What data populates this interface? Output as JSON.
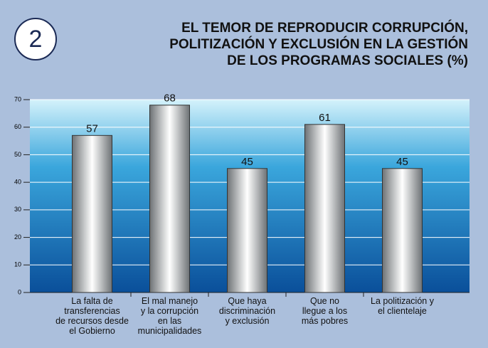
{
  "chart_data": {
    "type": "bar",
    "badge": "2",
    "title": "EL TEMOR DE REPRODUCIR CORRUPCIÓN,\nPOLITIZACIÓN Y EXCLUSIÓN EN LA GESTIÓN\nDE LOS PROGRAMAS SOCIALES (%)",
    "categories": [
      "La falta de\ntransferencias\nde recursos desde\nel Gobierno",
      "El mal manejo\ny la corrupción\nen las\nmunicipalidades",
      "Que haya\ndiscriminación\ny exclusión",
      "Que no\nllegue a los\nmás pobres",
      "La politización y\nel clientelaje"
    ],
    "values": [
      57,
      68,
      45,
      61,
      45
    ],
    "ylim": [
      0,
      70
    ],
    "yticks": [
      0,
      10,
      20,
      30,
      40,
      50,
      60,
      70
    ],
    "grid": true
  }
}
